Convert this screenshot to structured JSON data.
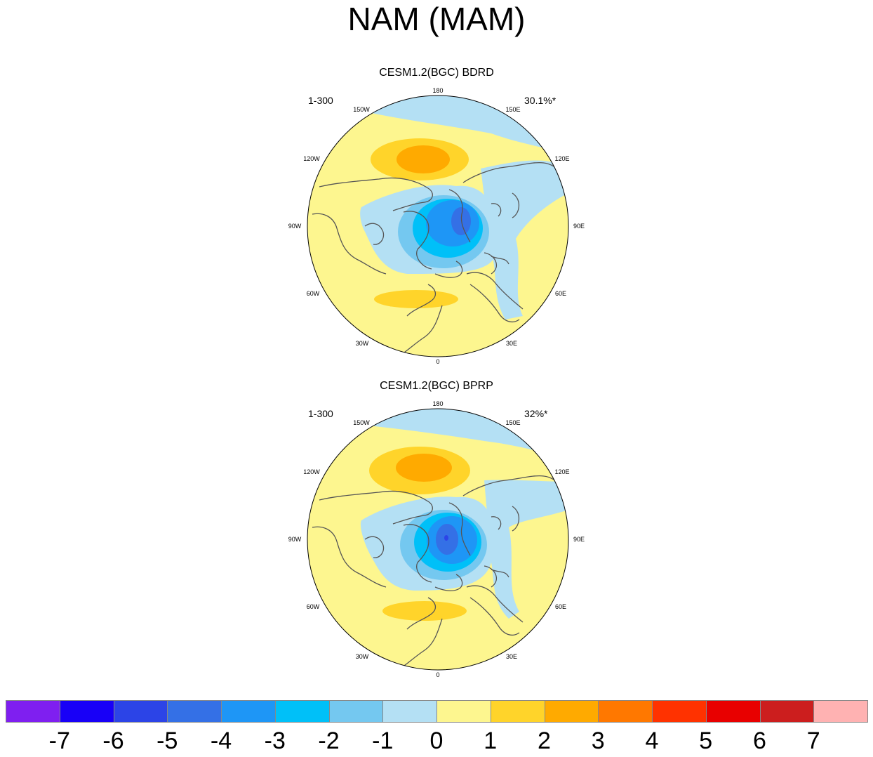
{
  "title": "NAM (MAM)",
  "panels": [
    {
      "title": "CESM1.2(BGC) BDRD",
      "left_label": "1-300",
      "right_label": "30.1%*"
    },
    {
      "title": "CESM1.2(BGC) BPRP",
      "left_label": "1-300",
      "right_label": "32%*"
    }
  ],
  "map_labels": {
    "lon_180": "180",
    "lon_150w": "150W",
    "lon_150e": "150E",
    "lon_120w": "120W",
    "lon_120e": "120E",
    "lon_90w": "90W",
    "lon_90e": "90E",
    "lon_60w": "60W",
    "lon_60e": "60E",
    "lon_30w": "30W",
    "lon_30e": "30E",
    "lon_0": "0"
  },
  "colorbar": {
    "colors": [
      "#7f1ff0",
      "#1800f7",
      "#2c44e7",
      "#3470e6",
      "#1e96f6",
      "#00c0f8",
      "#74c8f0",
      "#b4e0f4",
      "#fdf68f",
      "#ffd42a",
      "#ffaa00",
      "#ff7800",
      "#ff3200",
      "#e80000",
      "#cc1e1e",
      "#ffb2b2"
    ],
    "tick_labels": [
      "-7",
      "-6",
      "-5",
      "-4",
      "-3",
      "-2",
      "-1",
      "0",
      "1",
      "2",
      "3",
      "4",
      "5",
      "6",
      "7"
    ]
  }
}
